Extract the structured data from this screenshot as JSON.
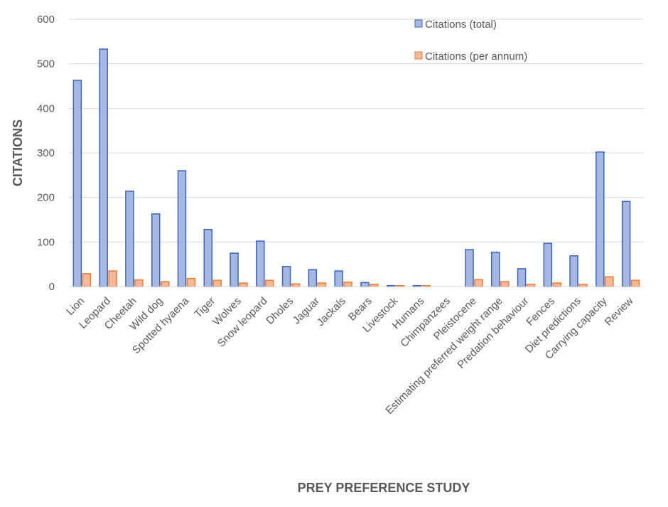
{
  "chart_data": {
    "type": "bar",
    "xlabel": "PREY PREFERENCE STUDY",
    "ylabel": "CITATIONS",
    "ylim": [
      0,
      600
    ],
    "yticks": [
      0,
      100,
      200,
      300,
      400,
      500,
      600
    ],
    "grid": true,
    "legend_position": "top-right",
    "categories": [
      "Lion",
      "Leopard",
      "Cheetah",
      "Wild dog",
      "Spotted hyaena",
      "Tiger",
      "Wolves",
      "Snow leopard",
      "Dholes",
      "Jaguar",
      "Jackals",
      "Bears",
      "Livestock",
      "Humans",
      "Chimpanzees",
      "Pleistocene",
      "Estimating preferred weight range",
      "Predation behaviour",
      "Fences",
      "Diet predictions",
      "Carrying capacity",
      "Review"
    ],
    "series": [
      {
        "name": "Citations (total)",
        "fill": "#a4b8e2",
        "stroke": "#3b64c0",
        "values": [
          463,
          533,
          214,
          163,
          260,
          128,
          75,
          102,
          45,
          38,
          35,
          9,
          2,
          2,
          0,
          83,
          77,
          40,
          97,
          69,
          302,
          191
        ]
      },
      {
        "name": "Citations (per annum)",
        "fill": "#f7b89a",
        "stroke": "#ed7d31",
        "values": [
          29,
          35,
          15,
          11,
          18,
          14,
          8,
          14,
          6,
          8,
          10,
          5,
          2,
          2,
          0,
          16,
          11,
          5,
          8,
          5,
          22,
          14
        ]
      }
    ]
  }
}
